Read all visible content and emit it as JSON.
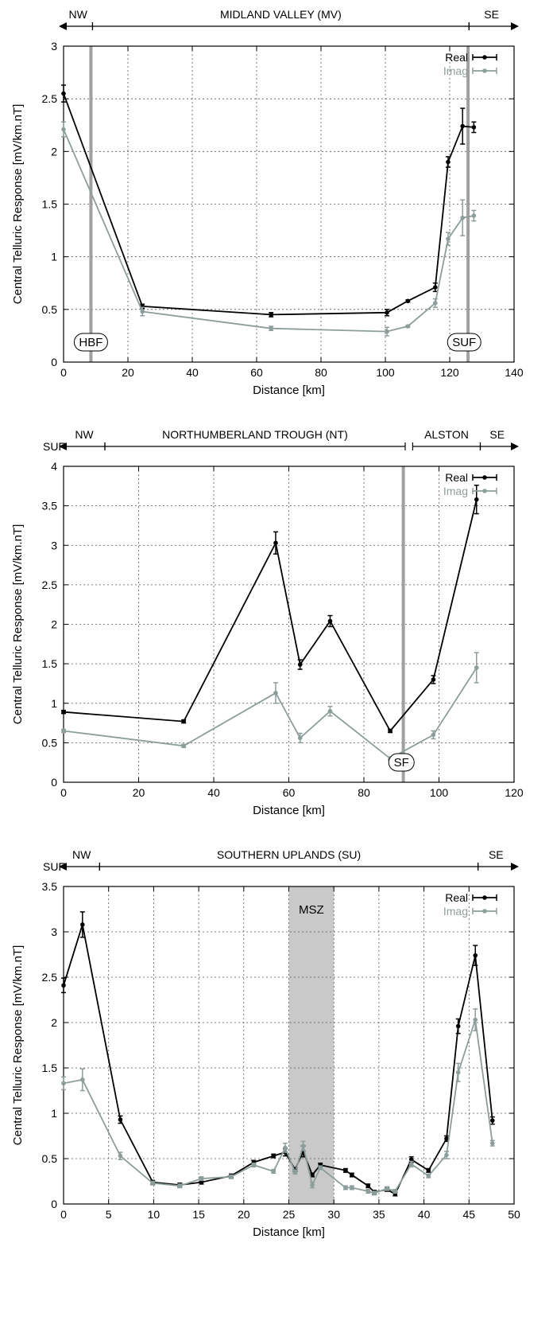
{
  "chart_data": [
    {
      "type": "line",
      "xlabel": "Distance [km]",
      "ylabel": "Central Telluric Response [mV/km.nT]",
      "xlim": [
        0,
        140
      ],
      "ylim": [
        0,
        3
      ],
      "xticks": [
        0,
        20,
        40,
        60,
        80,
        100,
        120,
        140
      ],
      "yticks": [
        0,
        0.5,
        1,
        1.5,
        2,
        2.5,
        3
      ],
      "grid": true,
      "legend_position": "top-right",
      "series": [
        {
          "name": "Real",
          "color": "#000000",
          "x": [
            0,
            24.5,
            64.5,
            100.5,
            107,
            115.5,
            119.5,
            124,
            127.5
          ],
          "y": [
            2.55,
            0.53,
            0.45,
            0.47,
            0.58,
            0.71,
            1.9,
            2.24,
            2.23
          ],
          "err": [
            0.08,
            0.02,
            0.02,
            0.03,
            0.01,
            0.04,
            0.05,
            0.17,
            0.05
          ]
        },
        {
          "name": "Imag",
          "color": "#8c9e9c",
          "x": [
            0,
            24.5,
            64.5,
            100.5,
            107,
            115.5,
            119.5,
            124,
            127.5
          ],
          "y": [
            2.21,
            0.48,
            0.32,
            0.29,
            0.34,
            0.56,
            1.17,
            1.37,
            1.39
          ],
          "err": [
            0.07,
            0.04,
            0.02,
            0.04,
            0.01,
            0.04,
            0.06,
            0.17,
            0.05
          ]
        }
      ],
      "vlines": [
        {
          "x": 8.5,
          "label": "HBF",
          "label_x": 8.5
        },
        {
          "x": 125.7,
          "label": "SUF",
          "label_x": 124.5
        }
      ],
      "header": {
        "left": "",
        "regions": [
          {
            "label": "NW",
            "from": 0,
            "to": 9
          },
          {
            "label": "MIDLAND VALLEY (MV)",
            "from": 9,
            "to": 126
          },
          {
            "label": "SE",
            "from": 126,
            "to": 140
          }
        ]
      }
    },
    {
      "type": "line",
      "xlabel": "Distance [km]",
      "ylabel": "Central Telluric Response [mV/km.nT]",
      "xlim": [
        0,
        120
      ],
      "ylim": [
        0,
        4
      ],
      "xticks": [
        0,
        20,
        40,
        60,
        80,
        100,
        120
      ],
      "yticks": [
        0,
        0.5,
        1,
        1.5,
        2,
        2.5,
        3,
        3.5,
        4
      ],
      "grid": true,
      "legend_position": "top-right",
      "series": [
        {
          "name": "Real",
          "color": "#000000",
          "x": [
            0,
            32,
            56.5,
            63,
            71,
            87,
            98.5,
            110
          ],
          "y": [
            0.89,
            0.77,
            3.03,
            1.49,
            2.04,
            0.65,
            1.3,
            3.58
          ],
          "err": [
            0.02,
            0.02,
            0.14,
            0.06,
            0.07,
            0.02,
            0.05,
            0.18
          ]
        },
        {
          "name": "Imag",
          "color": "#8c9e9c",
          "x": [
            0,
            32,
            56.5,
            63,
            71,
            87,
            98.5,
            110
          ],
          "y": [
            0.65,
            0.46,
            1.13,
            0.56,
            0.9,
            0.3,
            0.6,
            1.45
          ],
          "err": [
            0.02,
            0.02,
            0.13,
            0.06,
            0.06,
            0.02,
            0.05,
            0.19
          ]
        }
      ],
      "vlines": [
        {
          "x": 90.5,
          "label": "SF",
          "label_x": 90
        }
      ],
      "header": {
        "left": "SUF",
        "regions": [
          {
            "label": "NW",
            "from": 0,
            "to": 11
          },
          {
            "label": "NORTHUMBERLAND TROUGH (NT)",
            "from": 11,
            "to": 91
          },
          {
            "label": "ALSTON",
            "from": 93,
            "to": 111
          },
          {
            "label": "SE",
            "from": 111,
            "to": 120
          }
        ]
      }
    },
    {
      "type": "line",
      "xlabel": "Distance [km]",
      "ylabel": "Central Telluric Response [mV/km.nT]",
      "xlim": [
        0,
        50
      ],
      "ylim": [
        0,
        3.5
      ],
      "xticks": [
        0,
        5,
        10,
        15,
        20,
        25,
        30,
        35,
        40,
        45,
        50
      ],
      "yticks": [
        0,
        0.5,
        1,
        1.5,
        2,
        2.5,
        3,
        3.5
      ],
      "grid": true,
      "legend_position": "top-right",
      "series": [
        {
          "name": "Real",
          "color": "#000000",
          "x": [
            0,
            2.1,
            6.3,
            9.9,
            12.9,
            15.3,
            18.6,
            21.1,
            23.3,
            24.6,
            25.7,
            26.6,
            27.6,
            28.5,
            31.3,
            32,
            33.8,
            34.5,
            35.9,
            36.8,
            38.6,
            40.5,
            42.5,
            43.8,
            45.7,
            47.6
          ],
          "y": [
            2.41,
            3.08,
            0.93,
            0.24,
            0.21,
            0.24,
            0.31,
            0.46,
            0.53,
            0.57,
            0.38,
            0.58,
            0.32,
            0.43,
            0.37,
            0.32,
            0.2,
            0.13,
            0.16,
            0.11,
            0.49,
            0.37,
            0.72,
            1.96,
            2.74,
            0.92
          ],
          "err": [
            0.08,
            0.14,
            0.04,
            0.02,
            0.02,
            0.02,
            0.02,
            0.02,
            0.02,
            0.04,
            0.02,
            0.06,
            0.02,
            0.02,
            0.02,
            0.02,
            0.02,
            0.02,
            0.02,
            0.02,
            0.03,
            0.02,
            0.03,
            0.08,
            0.11,
            0.04
          ]
        },
        {
          "name": "Imag",
          "color": "#8c9e9c",
          "x": [
            0,
            2.1,
            6.3,
            9.9,
            12.9,
            15.3,
            18.6,
            21.1,
            23.3,
            24.6,
            25.7,
            26.6,
            27.6,
            28.5,
            31.3,
            32,
            33.8,
            34.5,
            35.9,
            36.8,
            38.6,
            40.5,
            42.5,
            43.8,
            45.7,
            47.6
          ],
          "y": [
            1.33,
            1.37,
            0.53,
            0.23,
            0.2,
            0.28,
            0.3,
            0.43,
            0.36,
            0.62,
            0.35,
            0.64,
            0.21,
            0.4,
            0.18,
            0.18,
            0.14,
            0.12,
            0.17,
            0.14,
            0.44,
            0.31,
            0.54,
            1.45,
            2.03,
            0.67
          ],
          "err": [
            0.07,
            0.12,
            0.04,
            0.02,
            0.02,
            0.02,
            0.02,
            0.02,
            0.02,
            0.05,
            0.02,
            0.05,
            0.03,
            0.02,
            0.02,
            0.02,
            0.02,
            0.02,
            0.02,
            0.02,
            0.03,
            0.02,
            0.04,
            0.1,
            0.12,
            0.03
          ]
        }
      ],
      "shaded_region": {
        "from": 25,
        "to": 30,
        "label": "MSZ"
      },
      "header": {
        "left": "SUF",
        "regions": [
          {
            "label": "NW",
            "from": 0,
            "to": 4
          },
          {
            "label": "SOUTHERN UPLANDS (SU)",
            "from": 4,
            "to": 46
          },
          {
            "label": "SE",
            "from": 46,
            "to": 50
          }
        ]
      }
    }
  ]
}
